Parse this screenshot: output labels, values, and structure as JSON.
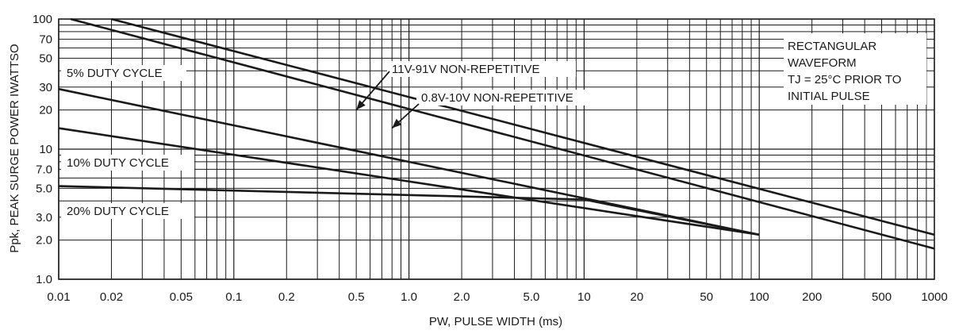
{
  "chart_data": {
    "type": "line",
    "x_scale": "log",
    "y_scale": "log",
    "xlim": [
      0.01,
      1000
    ],
    "ylim": [
      1.0,
      100
    ],
    "grid": true,
    "xlabel": "PW, PULSE WIDTH (ms)",
    "ylabel": "Ppk, PEAK SURGE POWER IWATTSO",
    "x_ticks": [
      {
        "value": 0.01,
        "label": "0.01"
      },
      {
        "value": 0.02,
        "label": "0.02"
      },
      {
        "value": 0.05,
        "label": "0.05"
      },
      {
        "value": 0.1,
        "label": "0.1"
      },
      {
        "value": 0.2,
        "label": "0.2"
      },
      {
        "value": 0.5,
        "label": "0.5"
      },
      {
        "value": 1,
        "label": "1.0"
      },
      {
        "value": 2,
        "label": "2.0"
      },
      {
        "value": 5,
        "label": "5.0"
      },
      {
        "value": 10,
        "label": "10"
      },
      {
        "value": 20,
        "label": "20"
      },
      {
        "value": 50,
        "label": "50"
      },
      {
        "value": 100,
        "label": "100"
      },
      {
        "value": 200,
        "label": "200"
      },
      {
        "value": 500,
        "label": "500"
      },
      {
        "value": 1000,
        "label": "1000"
      }
    ],
    "y_ticks": [
      {
        "value": 1,
        "label": "1.0"
      },
      {
        "value": 2,
        "label": "2.0"
      },
      {
        "value": 3,
        "label": "3.0"
      },
      {
        "value": 5,
        "label": "5.0"
      },
      {
        "value": 7,
        "label": "7.0"
      },
      {
        "value": 10,
        "label": "10"
      },
      {
        "value": 20,
        "label": "20"
      },
      {
        "value": 30,
        "label": "30"
      },
      {
        "value": 50,
        "label": "50"
      },
      {
        "value": 70,
        "label": "70"
      },
      {
        "value": 100,
        "label": "100"
      }
    ],
    "series": [
      {
        "name": "11V-91V NON-REPETITIVE",
        "x": [
          0.02,
          1000
        ],
        "y": [
          100,
          2.2
        ]
      },
      {
        "name": "0.8V-10V NON-REPETITIVE",
        "x": [
          0.0117,
          1000
        ],
        "y": [
          100,
          1.72
        ]
      },
      {
        "name": "5% DUTY CYCLE",
        "x": [
          0.01,
          100
        ],
        "y": [
          29,
          2.2
        ]
      },
      {
        "name": "10% DUTY CYCLE",
        "x": [
          0.01,
          100
        ],
        "y": [
          14.5,
          2.2
        ]
      },
      {
        "name": "20% DUTY CYCLE",
        "x": [
          0.01,
          10,
          100
        ],
        "y": [
          5.2,
          4.1,
          2.2
        ]
      }
    ],
    "annotations": [
      {
        "text": "11V-91V NON-REPETITIVE",
        "arrow_to": {
          "x": 0.5,
          "y": 20
        }
      },
      {
        "text": "0.8V-10V NON-REPETITIVE",
        "arrow_to": {
          "x": 0.8,
          "y": 14.5
        }
      },
      {
        "text": "5% DUTY CYCLE"
      },
      {
        "text": "10% DUTY CYCLE"
      },
      {
        "text": "20% DUTY CYCLE"
      }
    ],
    "note": [
      "RECTANGULAR",
      "WAVEFORM",
      "TJ = 25°C PRIOR TO",
      "INITIAL PULSE"
    ],
    "colors": {
      "line": "#1a1a1a",
      "grid": "#1a1a1a"
    }
  }
}
